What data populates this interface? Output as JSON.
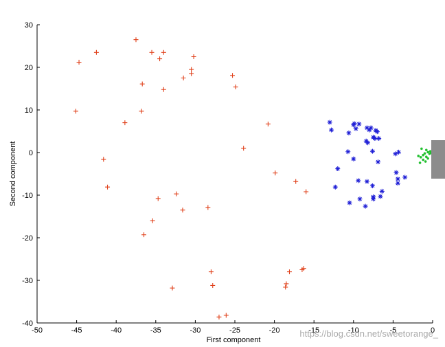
{
  "chart_data": {
    "type": "scatter",
    "title": "",
    "xlabel": "First component",
    "ylabel": "Second component",
    "xlim": [
      -50,
      0
    ],
    "ylim": [
      -40,
      30
    ],
    "xticks": [
      -50,
      -45,
      -40,
      -35,
      -30,
      -25,
      -20,
      -15,
      -10,
      -5,
      0
    ],
    "yticks": [
      -40,
      -30,
      -20,
      -10,
      0,
      10,
      20,
      30
    ],
    "grid": false,
    "legend": "none",
    "series": [
      {
        "marker": "plus",
        "color": "#e0401a",
        "points": [
          [
            -37.5,
            26.5
          ],
          [
            -42.5,
            23.5
          ],
          [
            -35.5,
            23.5
          ],
          [
            -34,
            23.5
          ],
          [
            -44.7,
            21.2
          ],
          [
            -34.5,
            22
          ],
          [
            -30.2,
            22.5
          ],
          [
            -30.5,
            19.5
          ],
          [
            -30.5,
            18.5
          ],
          [
            -31.5,
            17.5
          ],
          [
            -25.3,
            18.1
          ],
          [
            -36.7,
            16.1
          ],
          [
            -34,
            14.8
          ],
          [
            -24.9,
            15.4
          ],
          [
            -45.1,
            9.7
          ],
          [
            -36.8,
            9.7
          ],
          [
            -38.9,
            7
          ],
          [
            -20.8,
            6.7
          ],
          [
            -23.9,
            1
          ],
          [
            -41.6,
            -1.6
          ],
          [
            -19.9,
            -4.8
          ],
          [
            -41.1,
            -8.1
          ],
          [
            -17.3,
            -6.8
          ],
          [
            -16,
            -9.2
          ],
          [
            -32.4,
            -9.7
          ],
          [
            -34.7,
            -10.8
          ],
          [
            -31.6,
            -13.5
          ],
          [
            -28.4,
            -12.9
          ],
          [
            -35.4,
            -16
          ],
          [
            -36.5,
            -19.3
          ],
          [
            -28,
            -28
          ],
          [
            -27.8,
            -31.2
          ],
          [
            -18.1,
            -28
          ],
          [
            -18.5,
            -30.8
          ],
          [
            -18.6,
            -31.6
          ],
          [
            -16.3,
            -27.2
          ],
          [
            -16.5,
            -27.5
          ],
          [
            -32.9,
            -31.8
          ],
          [
            -27,
            -38.6
          ],
          [
            -26.1,
            -38.2
          ]
        ]
      },
      {
        "marker": "star",
        "color": "#1f1fd6",
        "points": [
          [
            -13,
            7.1
          ],
          [
            -12.8,
            5.3
          ],
          [
            -9.9,
            6.8
          ],
          [
            -10,
            6.5
          ],
          [
            -9.3,
            6.7
          ],
          [
            -9.7,
            5.6
          ],
          [
            -8.3,
            5.8
          ],
          [
            -8,
            5.3
          ],
          [
            -7.8,
            5.8
          ],
          [
            -7.2,
            5.2
          ],
          [
            -7,
            4.9
          ],
          [
            -10.6,
            4.6
          ],
          [
            -7.5,
            3.6
          ],
          [
            -6.8,
            3.3
          ],
          [
            -8.4,
            2.7
          ],
          [
            -8.2,
            2.3
          ],
          [
            -7.3,
            3.3
          ],
          [
            -7.6,
            0.3
          ],
          [
            -10.7,
            0.2
          ],
          [
            -10,
            -1.5
          ],
          [
            -6.9,
            -2.2
          ],
          [
            -4.7,
            -0.3
          ],
          [
            -4.3,
            0.1
          ],
          [
            -12,
            -3.8
          ],
          [
            -4.6,
            -4.7
          ],
          [
            -3.5,
            -5.8
          ],
          [
            -4.4,
            -6.2
          ],
          [
            -9.4,
            -6.6
          ],
          [
            -8.3,
            -6.8
          ],
          [
            -7.6,
            -7.8
          ],
          [
            -4.4,
            -7.2
          ],
          [
            -10.5,
            -11.8
          ],
          [
            -9.2,
            -10.9
          ],
          [
            -7.5,
            -10.9
          ],
          [
            -7.5,
            -10.4
          ],
          [
            -6.6,
            -10.3
          ],
          [
            -6.4,
            -9.1
          ],
          [
            -8.5,
            -12.6
          ],
          [
            -12.3,
            -8.1
          ]
        ]
      },
      {
        "marker": "dot",
        "color": "#22c030",
        "points": [
          [
            -1.4,
            0.9
          ],
          [
            -0.8,
            0.6
          ],
          [
            -0.3,
            0.3
          ],
          [
            -0.6,
            0.1
          ],
          [
            -1,
            -0.2
          ],
          [
            -0.4,
            -0.3
          ],
          [
            -1.2,
            -0.6
          ],
          [
            -0.8,
            -1
          ],
          [
            -1.5,
            -1.1
          ],
          [
            -0.6,
            -1.4
          ],
          [
            -1.2,
            -1.7
          ],
          [
            -1.6,
            -2.4
          ],
          [
            -0.9,
            -2.1
          ],
          [
            -0.2,
            -0.1
          ],
          [
            -1.8,
            -0.8
          ]
        ]
      }
    ]
  },
  "colors": {
    "axis": "#000000",
    "overlay_box": "#8c8c8c"
  },
  "watermark": "https://blog.csdn.net/sweetorange_"
}
